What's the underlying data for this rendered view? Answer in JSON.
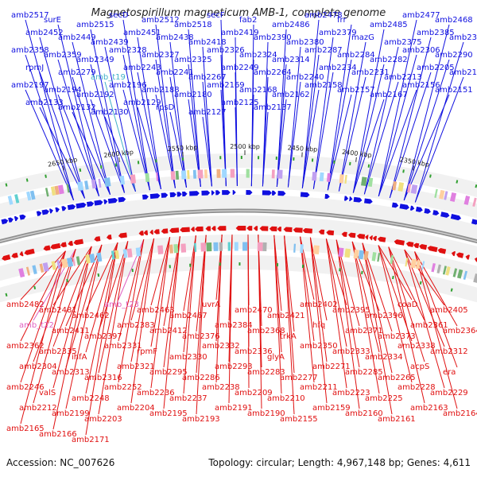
{
  "title": "Magnetospirillum magneticum AMB-1, complete genome",
  "footer": {
    "accession": "Accession: NC_007626",
    "topology": "Topology: circular; Length: 4,967,148 bp; Genes: 4,611"
  },
  "colors": {
    "forward": "#1010e0",
    "reverse": "#e01010",
    "trna": "#40b0c8",
    "rna_pink": "#e060c0",
    "backbone": "#909090"
  },
  "scale_ticks": [
    "2650 kbp",
    "2600 kbp",
    "2550 kbp",
    "2500 kbp",
    "2450 kbp",
    "2400 kbp",
    "2350 kbp"
  ],
  "top_labels": [
    {
      "text": "amb2517",
      "type": "forward"
    },
    {
      "text": "surE",
      "type": "forward"
    },
    {
      "text": "amb2515",
      "type": "forward"
    },
    {
      "text": "secD",
      "type": "forward"
    },
    {
      "text": "amb2512",
      "type": "forward"
    },
    {
      "text": "amb2518",
      "type": "forward"
    },
    {
      "text": "secF",
      "type": "forward"
    },
    {
      "text": "fab2",
      "type": "forward"
    },
    {
      "text": "amb2486",
      "type": "forward"
    },
    {
      "text": "amb2478",
      "type": "forward"
    },
    {
      "text": "frr",
      "type": "forward"
    },
    {
      "text": "amb2485",
      "type": "forward"
    },
    {
      "text": "amb2477",
      "type": "forward"
    },
    {
      "text": "amb2468",
      "type": "forward"
    },
    {
      "text": "amb2452",
      "type": "forward"
    },
    {
      "text": "amb2449",
      "type": "forward"
    },
    {
      "text": "amb2439",
      "type": "forward"
    },
    {
      "text": "amb2451",
      "type": "forward"
    },
    {
      "text": "amb2438",
      "type": "forward"
    },
    {
      "text": "amb2418",
      "type": "forward"
    },
    {
      "text": "amb2419",
      "type": "forward"
    },
    {
      "text": "amb2390",
      "type": "forward"
    },
    {
      "text": "amb2380",
      "type": "forward"
    },
    {
      "text": "amb2379",
      "type": "forward"
    },
    {
      "text": "mazG",
      "type": "forward"
    },
    {
      "text": "amb2375",
      "type": "forward"
    },
    {
      "text": "amb2385",
      "type": "forward"
    },
    {
      "text": "amb2363",
      "type": "forward"
    },
    {
      "text": "amb2358",
      "type": "forward"
    },
    {
      "text": "amb2359",
      "type": "forward"
    },
    {
      "text": "amb2349",
      "type": "forward"
    },
    {
      "text": "amb2328",
      "type": "forward"
    },
    {
      "text": "amb2327",
      "type": "forward"
    },
    {
      "text": "amb2325",
      "type": "forward"
    },
    {
      "text": "amb2326",
      "type": "forward"
    },
    {
      "text": "amb2324",
      "type": "forward"
    },
    {
      "text": "amb2314",
      "type": "forward"
    },
    {
      "text": "amb2287",
      "type": "forward"
    },
    {
      "text": "amb2284",
      "type": "forward"
    },
    {
      "text": "amb2282",
      "type": "forward"
    },
    {
      "text": "amb2306",
      "type": "forward"
    },
    {
      "text": "amb2290",
      "type": "forward"
    },
    {
      "text": "rpmJ",
      "type": "forward"
    },
    {
      "text": "amb2279",
      "type": "forward"
    },
    {
      "text": "amb_t19",
      "type": "trna"
    },
    {
      "text": "amb2243",
      "type": "forward"
    },
    {
      "text": "amb2241",
      "type": "forward"
    },
    {
      "text": "amb2267",
      "type": "forward"
    },
    {
      "text": "amb2249",
      "type": "forward"
    },
    {
      "text": "amb2264",
      "type": "forward"
    },
    {
      "text": "amb2240",
      "type": "forward"
    },
    {
      "text": "amb2234",
      "type": "forward"
    },
    {
      "text": "amb2231",
      "type": "forward"
    },
    {
      "text": "amb2213",
      "type": "forward"
    },
    {
      "text": "amb2205",
      "type": "forward"
    },
    {
      "text": "amb2198",
      "type": "forward"
    },
    {
      "text": "amb2197",
      "type": "forward"
    },
    {
      "text": "amb2194",
      "type": "forward"
    },
    {
      "text": "amb2192",
      "type": "forward"
    },
    {
      "text": "amb2196",
      "type": "forward"
    },
    {
      "text": "amb2188",
      "type": "forward"
    },
    {
      "text": "amb2180",
      "type": "forward"
    },
    {
      "text": "amb2169",
      "type": "forward"
    },
    {
      "text": "amb2168",
      "type": "forward"
    },
    {
      "text": "amb2162",
      "type": "forward"
    },
    {
      "text": "amb2158",
      "type": "forward"
    },
    {
      "text": "amb2157",
      "type": "forward"
    },
    {
      "text": "amb2167",
      "type": "forward"
    },
    {
      "text": "amb2156",
      "type": "forward"
    },
    {
      "text": "amb2151",
      "type": "forward"
    },
    {
      "text": "amb2133",
      "type": "forward"
    },
    {
      "text": "amb2132",
      "type": "forward"
    },
    {
      "text": "amb2130",
      "type": "forward"
    },
    {
      "text": "amb2129",
      "type": "forward"
    },
    {
      "text": "rpsD",
      "type": "forward"
    },
    {
      "text": "amb2127",
      "type": "forward"
    },
    {
      "text": "amb2125",
      "type": "forward"
    },
    {
      "text": "amb2137",
      "type": "forward"
    }
  ],
  "bottom_labels": [
    {
      "text": "amb2482",
      "type": "reverse"
    },
    {
      "text": "amb2481",
      "type": "reverse"
    },
    {
      "text": "amb2462",
      "type": "reverse"
    },
    {
      "text": "amb_t23",
      "type": "rna_pink"
    },
    {
      "text": "amb2463",
      "type": "reverse"
    },
    {
      "text": "amb2467",
      "type": "reverse"
    },
    {
      "text": "uvrA",
      "type": "reverse"
    },
    {
      "text": "amb2470",
      "type": "reverse"
    },
    {
      "text": "amb2421",
      "type": "reverse"
    },
    {
      "text": "amb2402",
      "type": "reverse"
    },
    {
      "text": "amb2395",
      "type": "reverse"
    },
    {
      "text": "amb2396",
      "type": "reverse"
    },
    {
      "text": "coaD",
      "type": "reverse"
    },
    {
      "text": "amb2405",
      "type": "reverse"
    },
    {
      "text": "amb_t22",
      "type": "rna_pink"
    },
    {
      "text": "amb2411",
      "type": "reverse"
    },
    {
      "text": "amb2397",
      "type": "reverse"
    },
    {
      "text": "amb2383",
      "type": "reverse"
    },
    {
      "text": "amb2412",
      "type": "reverse"
    },
    {
      "text": "amb2376",
      "type": "reverse"
    },
    {
      "text": "amb2384",
      "type": "reverse"
    },
    {
      "text": "amb2368",
      "type": "reverse"
    },
    {
      "text": "trkA",
      "type": "reverse"
    },
    {
      "text": "hfq",
      "type": "reverse"
    },
    {
      "text": "amb2371",
      "type": "reverse"
    },
    {
      "text": "amb2373",
      "type": "reverse"
    },
    {
      "text": "amb2361",
      "type": "reverse"
    },
    {
      "text": "amb2364",
      "type": "reverse"
    },
    {
      "text": "amb2362",
      "type": "reverse"
    },
    {
      "text": "amb2335",
      "type": "reverse"
    },
    {
      "text": "ihfA",
      "type": "reverse"
    },
    {
      "text": "amb2331",
      "type": "reverse"
    },
    {
      "text": "rpmF",
      "type": "reverse"
    },
    {
      "text": "amb2330",
      "type": "reverse"
    },
    {
      "text": "amb2332",
      "type": "reverse"
    },
    {
      "text": "amb2336",
      "type": "reverse"
    },
    {
      "text": "glyA",
      "type": "reverse"
    },
    {
      "text": "amb2350",
      "type": "reverse"
    },
    {
      "text": "amb2333",
      "type": "reverse"
    },
    {
      "text": "amb2334",
      "type": "reverse"
    },
    {
      "text": "amb2338",
      "type": "reverse"
    },
    {
      "text": "amb2312",
      "type": "reverse"
    },
    {
      "text": "amb2304",
      "type": "reverse"
    },
    {
      "text": "amb2313",
      "type": "reverse"
    },
    {
      "text": "amb2316",
      "type": "reverse"
    },
    {
      "text": "amb2321",
      "type": "reverse"
    },
    {
      "text": "amb2295",
      "type": "reverse"
    },
    {
      "text": "amb2286",
      "type": "reverse"
    },
    {
      "text": "amb2293",
      "type": "reverse"
    },
    {
      "text": "amb2283",
      "type": "reverse"
    },
    {
      "text": "amb2277",
      "type": "reverse"
    },
    {
      "text": "amb2271",
      "type": "reverse"
    },
    {
      "text": "amb2285",
      "type": "reverse"
    },
    {
      "text": "amb2265",
      "type": "reverse"
    },
    {
      "text": "acpS",
      "type": "reverse"
    },
    {
      "text": "era",
      "type": "reverse"
    },
    {
      "text": "amb2246",
      "type": "reverse"
    },
    {
      "text": "valS",
      "type": "reverse"
    },
    {
      "text": "amb2248",
      "type": "reverse"
    },
    {
      "text": "amb2252",
      "type": "reverse"
    },
    {
      "text": "amb2236",
      "type": "reverse"
    },
    {
      "text": "amb2237",
      "type": "reverse"
    },
    {
      "text": "amb2238",
      "type": "reverse"
    },
    {
      "text": "amb2209",
      "type": "reverse"
    },
    {
      "text": "amb2210",
      "type": "reverse"
    },
    {
      "text": "amb2211",
      "type": "reverse"
    },
    {
      "text": "amb2223",
      "type": "reverse"
    },
    {
      "text": "amb2225",
      "type": "reverse"
    },
    {
      "text": "amb2228",
      "type": "reverse"
    },
    {
      "text": "amb2229",
      "type": "reverse"
    },
    {
      "text": "amb2212",
      "type": "reverse"
    },
    {
      "text": "amb2199",
      "type": "reverse"
    },
    {
      "text": "amb2203",
      "type": "reverse"
    },
    {
      "text": "amb2204",
      "type": "reverse"
    },
    {
      "text": "amb2195",
      "type": "reverse"
    },
    {
      "text": "amb2193",
      "type": "reverse"
    },
    {
      "text": "amb2191",
      "type": "reverse"
    },
    {
      "text": "amb2190",
      "type": "reverse"
    },
    {
      "text": "amb2155",
      "type": "reverse"
    },
    {
      "text": "amb2159",
      "type": "reverse"
    },
    {
      "text": "amb2160",
      "type": "reverse"
    },
    {
      "text": "amb2161",
      "type": "reverse"
    },
    {
      "text": "amb2163",
      "type": "reverse"
    },
    {
      "text": "amb2164",
      "type": "reverse"
    },
    {
      "text": "amb2165",
      "type": "reverse"
    },
    {
      "text": "amb2166",
      "type": "reverse"
    },
    {
      "text": "amb2171",
      "type": "reverse"
    }
  ]
}
